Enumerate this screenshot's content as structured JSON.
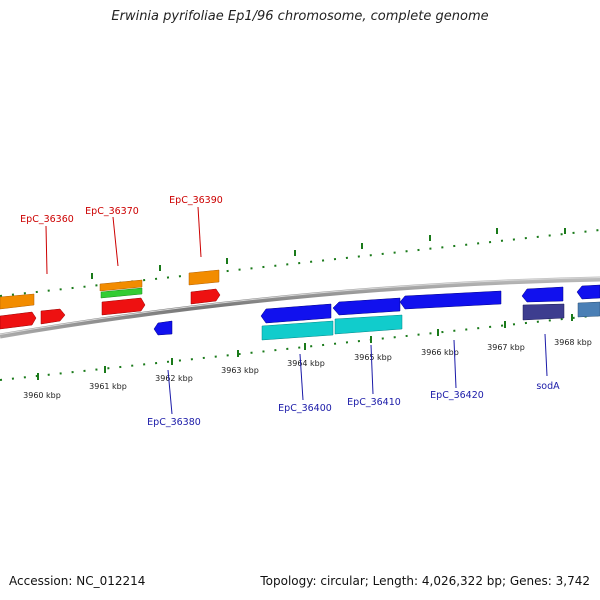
{
  "title": "Erwinia pyrifoliae Ep1/96 chromosome, complete genome",
  "footer": {
    "accession": "Accession: NC_012214",
    "topology": "Topology: circular; Length: 4,026,322 bp; Genes: 3,742"
  },
  "scale_labels": [
    "3960 kbp",
    "3961 kbp",
    "3962 kbp",
    "3963 kbp",
    "3964 kbp",
    "3965 kbp",
    "3966 kbp",
    "3967 kbp",
    "3968 kbp"
  ],
  "gene_labels": {
    "top": [
      "EpC_36360",
      "EpC_36370",
      "EpC_36390"
    ],
    "bottom": [
      "EpC_36380",
      "EpC_36400",
      "EpC_36410",
      "EpC_36420",
      "sodA"
    ]
  },
  "colors": {
    "forward_label": "#cc0000",
    "reverse_label": "#1a1aa8",
    "orange": "#f28c00",
    "green": "#33cc33",
    "red": "#ee1111",
    "blue": "#1111ee",
    "cyan": "#11cccc",
    "purple": "#3d3d8f",
    "steel": "#4a7fb5",
    "tick": "#1a7a1a",
    "backbone": "#888888"
  }
}
